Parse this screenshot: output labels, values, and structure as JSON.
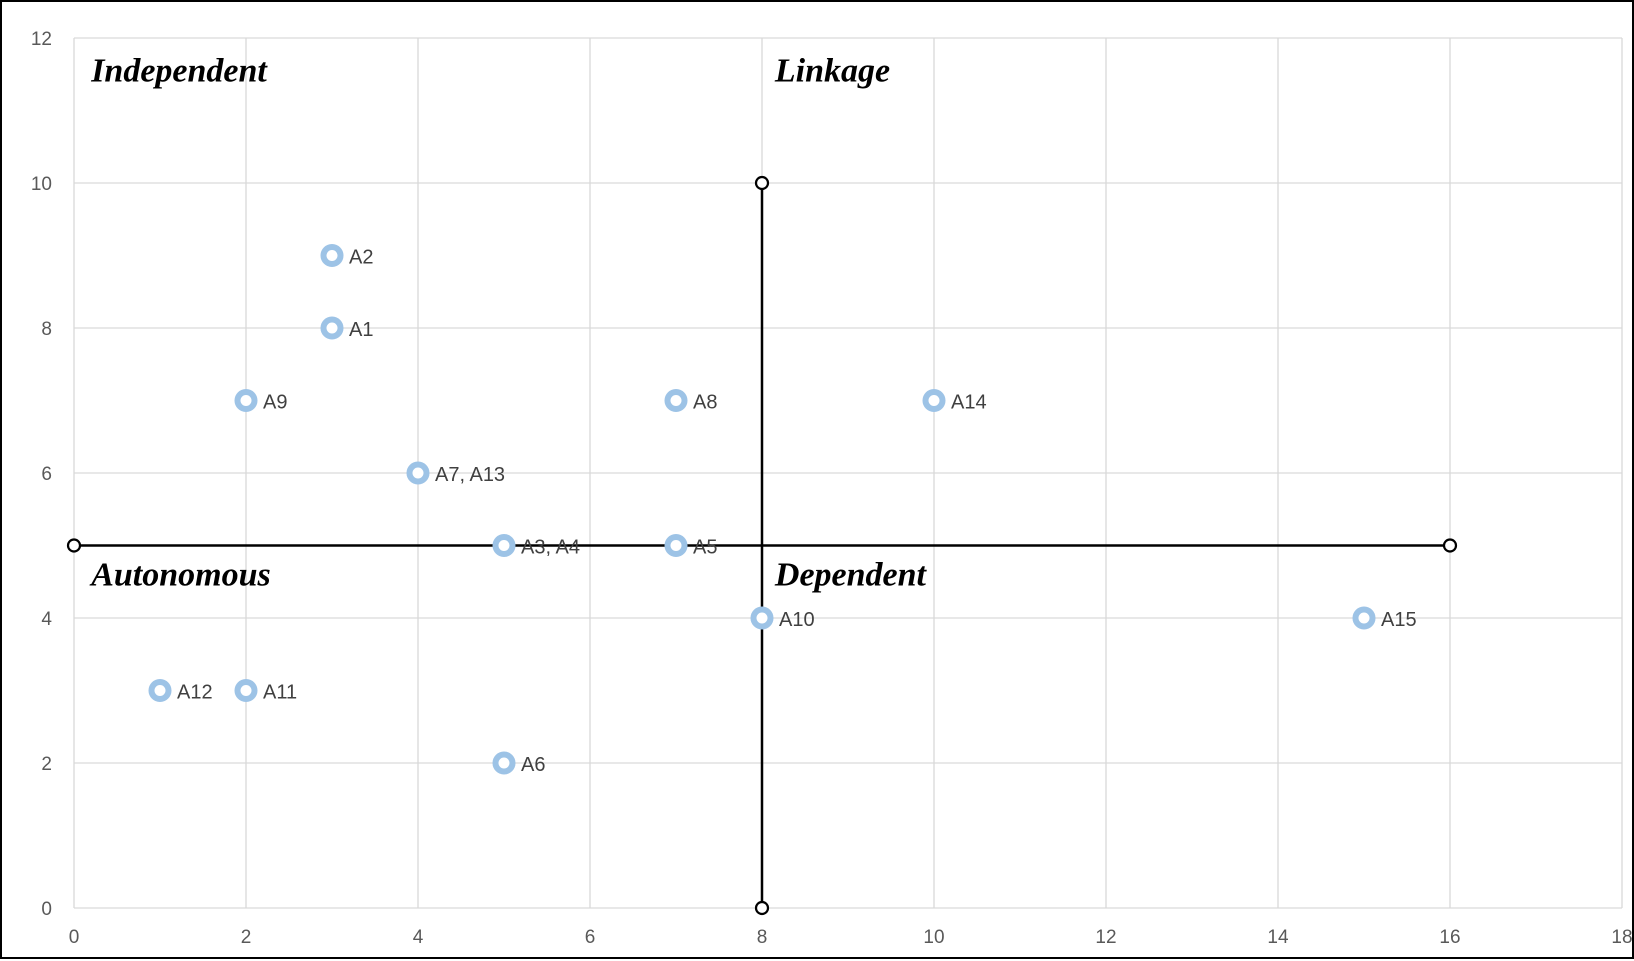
{
  "chart_data": {
    "type": "scatter",
    "xlim": [
      0,
      18
    ],
    "ylim": [
      0,
      12
    ],
    "x_ticks": [
      "0",
      "2",
      "4",
      "6",
      "8",
      "10",
      "12",
      "14",
      "16",
      "18"
    ],
    "y_ticks": [
      "0",
      "2",
      "4",
      "6",
      "8",
      "10",
      "12"
    ],
    "grid": true,
    "points": [
      {
        "label": "A2",
        "x": 3,
        "y": 9
      },
      {
        "label": "A1",
        "x": 3,
        "y": 8
      },
      {
        "label": "A9",
        "x": 2,
        "y": 7
      },
      {
        "label": "A8",
        "x": 7,
        "y": 7
      },
      {
        "label": "A14",
        "x": 10,
        "y": 7
      },
      {
        "label": "A7, A13",
        "x": 4,
        "y": 6
      },
      {
        "label": "A3, A4",
        "x": 5,
        "y": 5
      },
      {
        "label": "A5",
        "x": 7,
        "y": 5
      },
      {
        "label": "A10",
        "x": 8,
        "y": 4
      },
      {
        "label": "A15",
        "x": 15,
        "y": 4
      },
      {
        "label": "A12",
        "x": 1,
        "y": 3
      },
      {
        "label": "A11",
        "x": 2,
        "y": 3
      },
      {
        "label": "A6",
        "x": 5,
        "y": 2
      }
    ],
    "divider_lines": [
      {
        "x": [
          0,
          16
        ],
        "y": [
          5,
          5
        ]
      },
      {
        "x": [
          8,
          8
        ],
        "y": [
          0,
          10
        ]
      }
    ],
    "quadrant_labels": [
      {
        "text": "Independent",
        "x": 0.2,
        "y": 11.4
      },
      {
        "text": "Linkage",
        "x": 8.15,
        "y": 11.4
      },
      {
        "text": "Autonomous",
        "x": 0.2,
        "y": 4.45
      },
      {
        "text": "Dependent",
        "x": 8.15,
        "y": 4.45
      }
    ],
    "colors": {
      "marker": "#9dc3e6",
      "marker_center": "#ffffff",
      "divider": "#000000",
      "grid": "#d9d9d9",
      "tick_text": "#595959",
      "label_text": "#404040"
    }
  }
}
